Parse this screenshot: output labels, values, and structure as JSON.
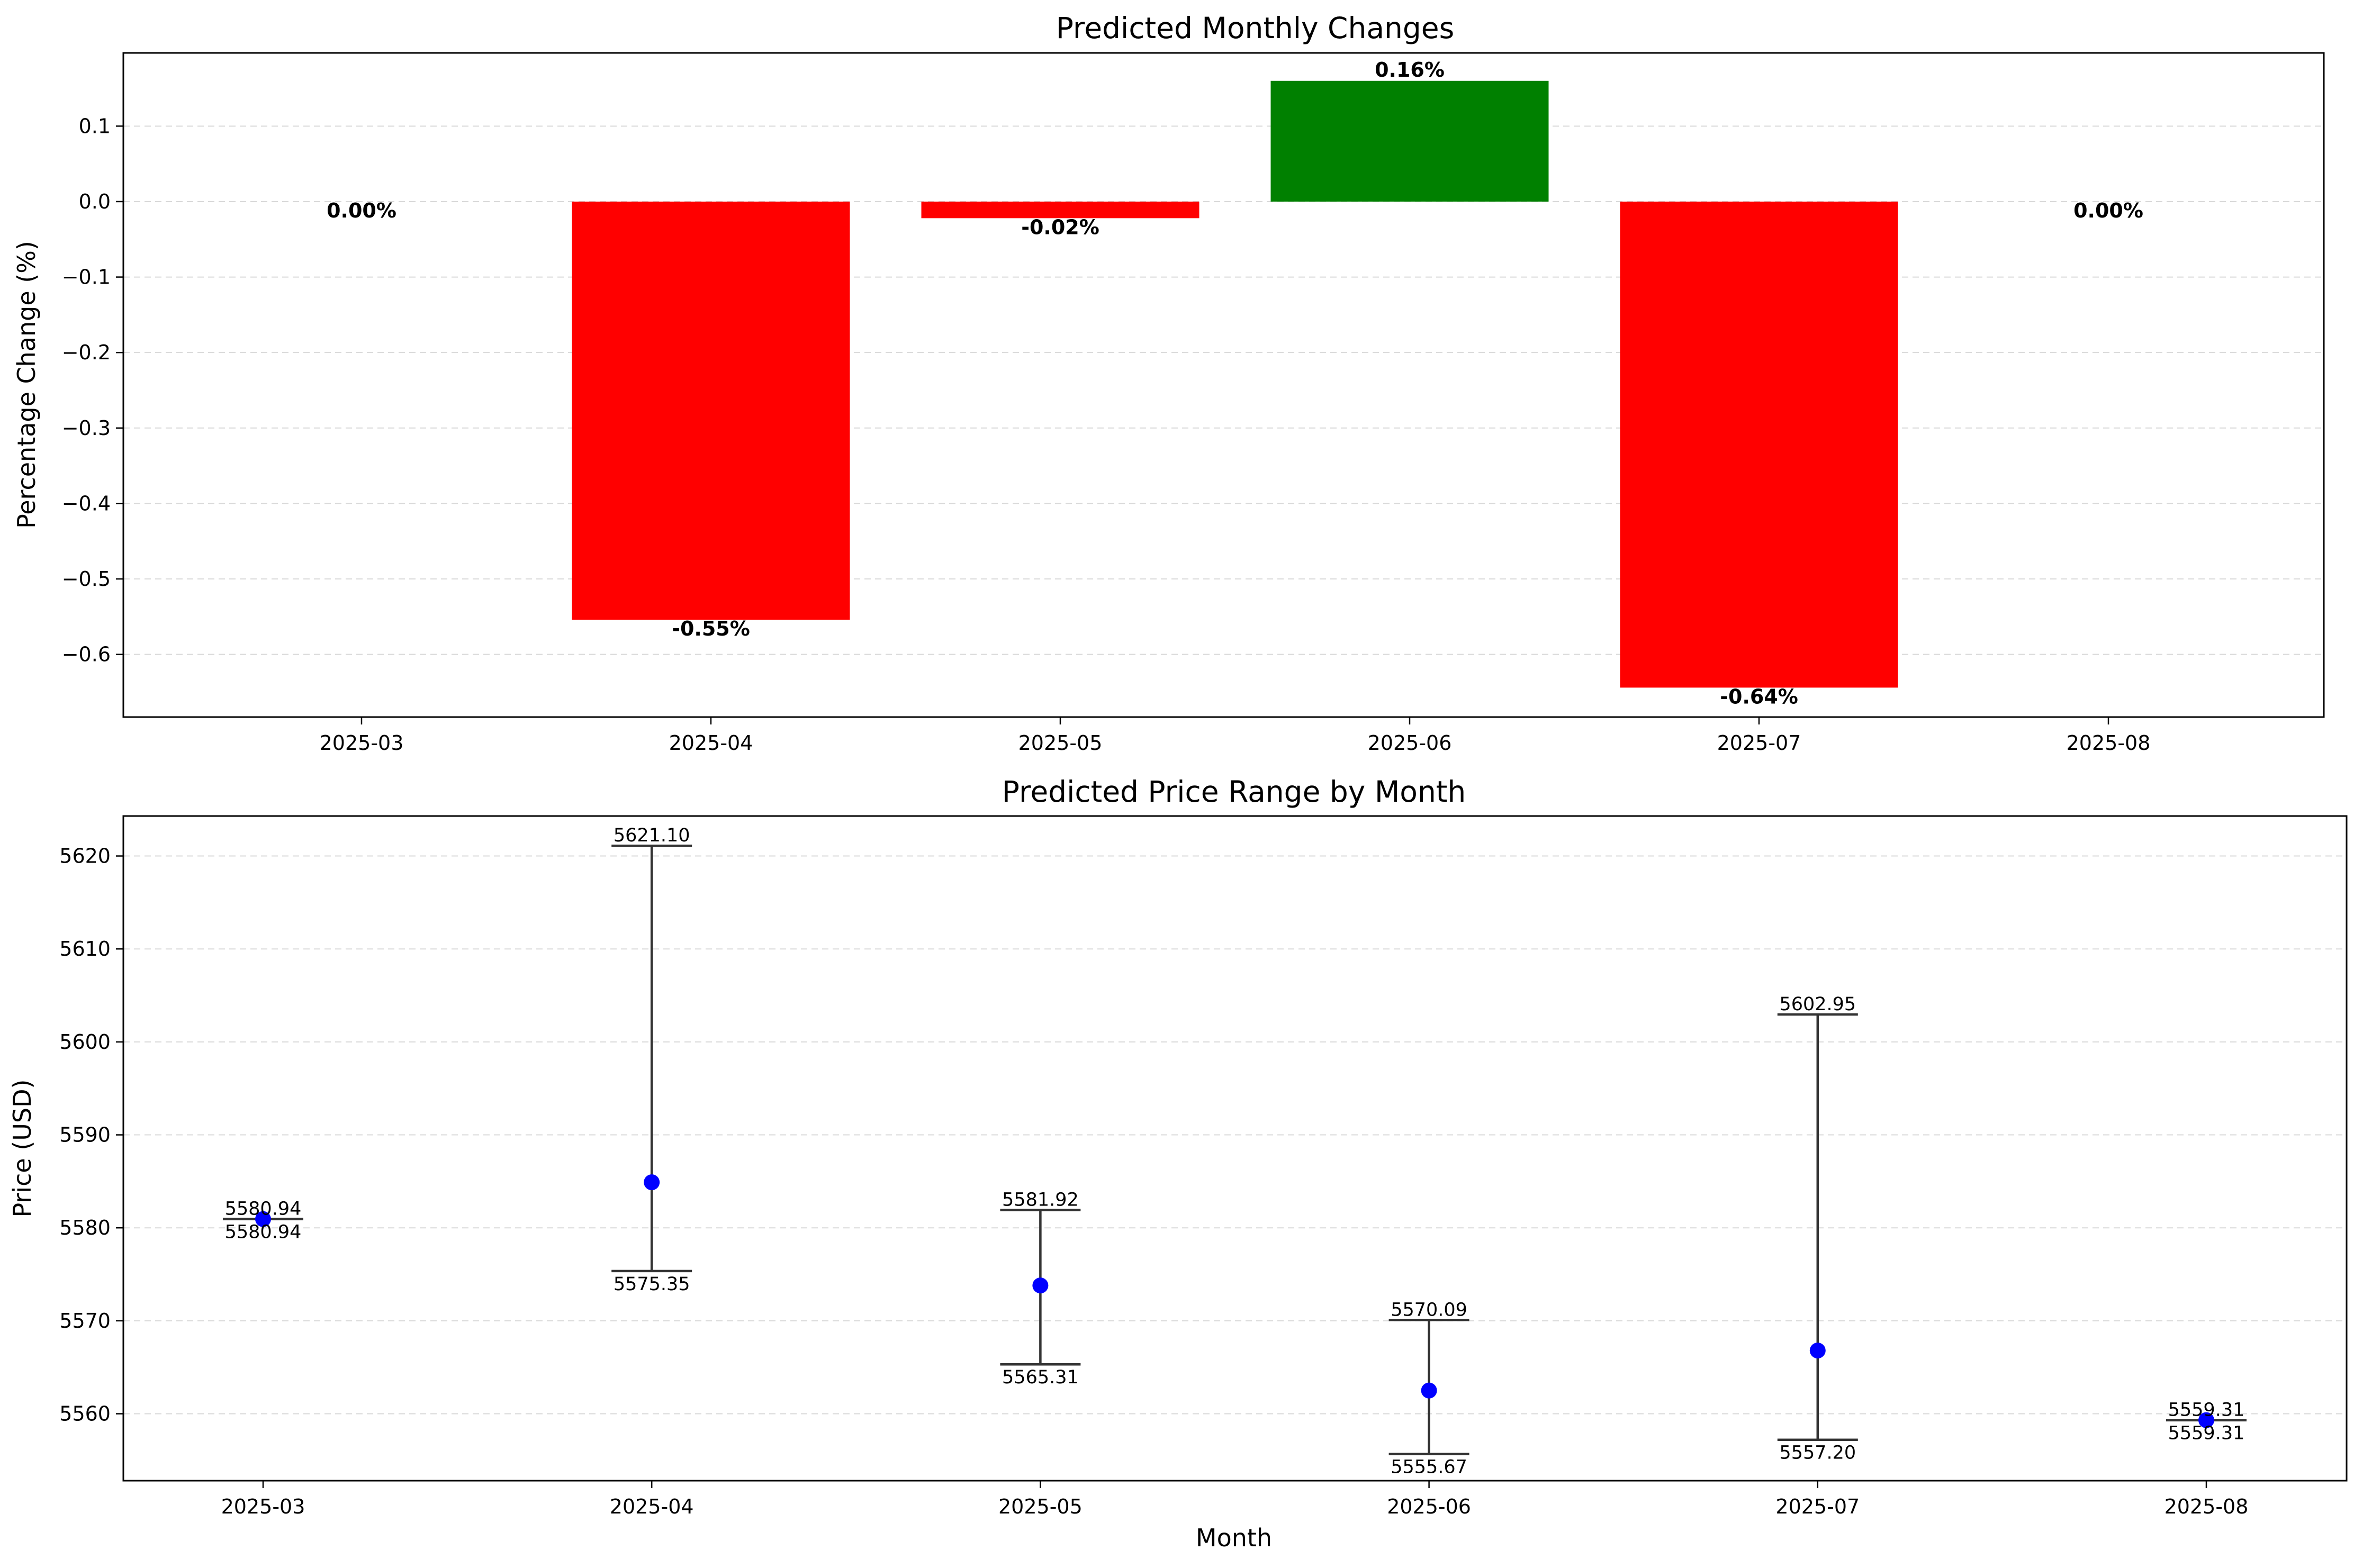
{
  "chart_data": [
    {
      "type": "bar",
      "title": "Predicted Monthly Changes",
      "xlabel": "",
      "ylabel": "Percentage Change (%)",
      "categories": [
        "2025-03",
        "2025-04",
        "2025-05",
        "2025-06",
        "2025-07",
        "2025-08"
      ],
      "values": [
        0.0,
        -0.554,
        -0.022,
        0.16,
        -0.644,
        0.0
      ],
      "data_labels": [
        "0.00%",
        "-0.55%",
        "-0.02%",
        "0.16%",
        "-0.64%",
        "0.00%"
      ],
      "bar_colors": [
        "#008000",
        "#ff0000",
        "#ff0000",
        "#008000",
        "#ff0000",
        "#008000"
      ],
      "ylim": [
        -0.683,
        0.197
      ],
      "yticks": [
        0.1,
        0.0,
        -0.1,
        -0.2,
        -0.3,
        -0.4,
        -0.5,
        -0.6
      ],
      "ytick_labels": [
        "0.1",
        "0.0",
        "−0.1",
        "−0.2",
        "−0.3",
        "−0.4",
        "−0.5",
        "−0.6"
      ],
      "grid": "y dashed"
    },
    {
      "type": "scatter",
      "title": "Predicted Price Range by Month",
      "xlabel": "Month",
      "ylabel": "Price (USD)",
      "categories": [
        "2025-03",
        "2025-04",
        "2025-05",
        "2025-06",
        "2025-07",
        "2025-08"
      ],
      "mid": [
        5580.94,
        5584.9,
        5573.8,
        5562.5,
        5566.8,
        5559.31
      ],
      "high": [
        5580.94,
        5621.1,
        5581.92,
        5570.09,
        5602.95,
        5559.31
      ],
      "low": [
        5580.94,
        5575.35,
        5565.31,
        5555.67,
        5557.2,
        5559.31
      ],
      "high_labels": [
        "5580.94",
        "5621.10",
        "5581.92",
        "5570.09",
        "5602.95",
        "5559.31"
      ],
      "low_labels": [
        "5580.94",
        "5575.35",
        "5565.31",
        "5555.67",
        "5557.20",
        "5559.31"
      ],
      "marker_color": "#0000ff",
      "ylim": [
        5552.8,
        5624.3
      ],
      "yticks": [
        5560,
        5570,
        5580,
        5590,
        5600,
        5610,
        5620
      ],
      "ytick_labels": [
        "5560",
        "5570",
        "5580",
        "5590",
        "5600",
        "5610",
        "5620"
      ],
      "grid": "y dashed"
    }
  ]
}
